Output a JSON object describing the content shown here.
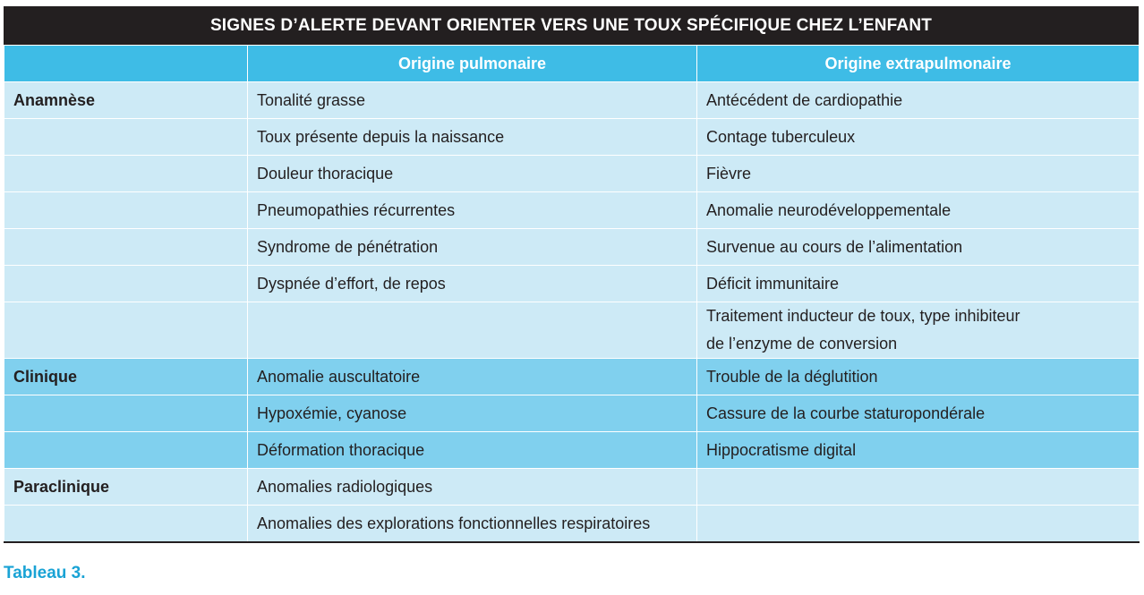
{
  "title": "SIGNES D’ALERTE DEVANT ORIENTER VERS UNE TOUX SPÉCIFIQUE CHEZ L’ENFANT",
  "headers": [
    "Origine pulmonaire",
    "Origine extrapulmonaire"
  ],
  "sections": [
    {
      "label": "Anamnèse",
      "rows": [
        [
          "Tonalité grasse",
          "Antécédent de cardiopathie"
        ],
        [
          "Toux présente depuis la naissance",
          "Contage tuberculeux"
        ],
        [
          "Douleur thoracique",
          "Fièvre"
        ],
        [
          "Pneumopathies récurrentes",
          "Anomalie neurodéveloppementale"
        ],
        [
          "Syndrome de pénétration",
          "Survenue au cours de l’alimentation"
        ],
        [
          "Dyspnée d’effort, de repos",
          "Déficit immunitaire"
        ],
        [
          null,
          "Traitement inducteur de toux, type inhibiteur\nde l’enzyme de conversion"
        ]
      ]
    },
    {
      "label": "Clinique",
      "rows": [
        [
          "Anomalie auscultatoire",
          "Trouble de la déglutition"
        ],
        [
          "Hypoxémie, cyanose",
          "Cassure de la courbe staturopondérale"
        ],
        [
          "Déformation thoracique",
          "Hippocratisme digital"
        ]
      ]
    },
    {
      "label": "Paraclinique",
      "rows": [
        [
          "Anomalies radiologiques",
          null
        ],
        [
          "Anomalies des explorations fonctionnelles respiratoires",
          null
        ]
      ]
    }
  ],
  "caption": "Tableau 3."
}
